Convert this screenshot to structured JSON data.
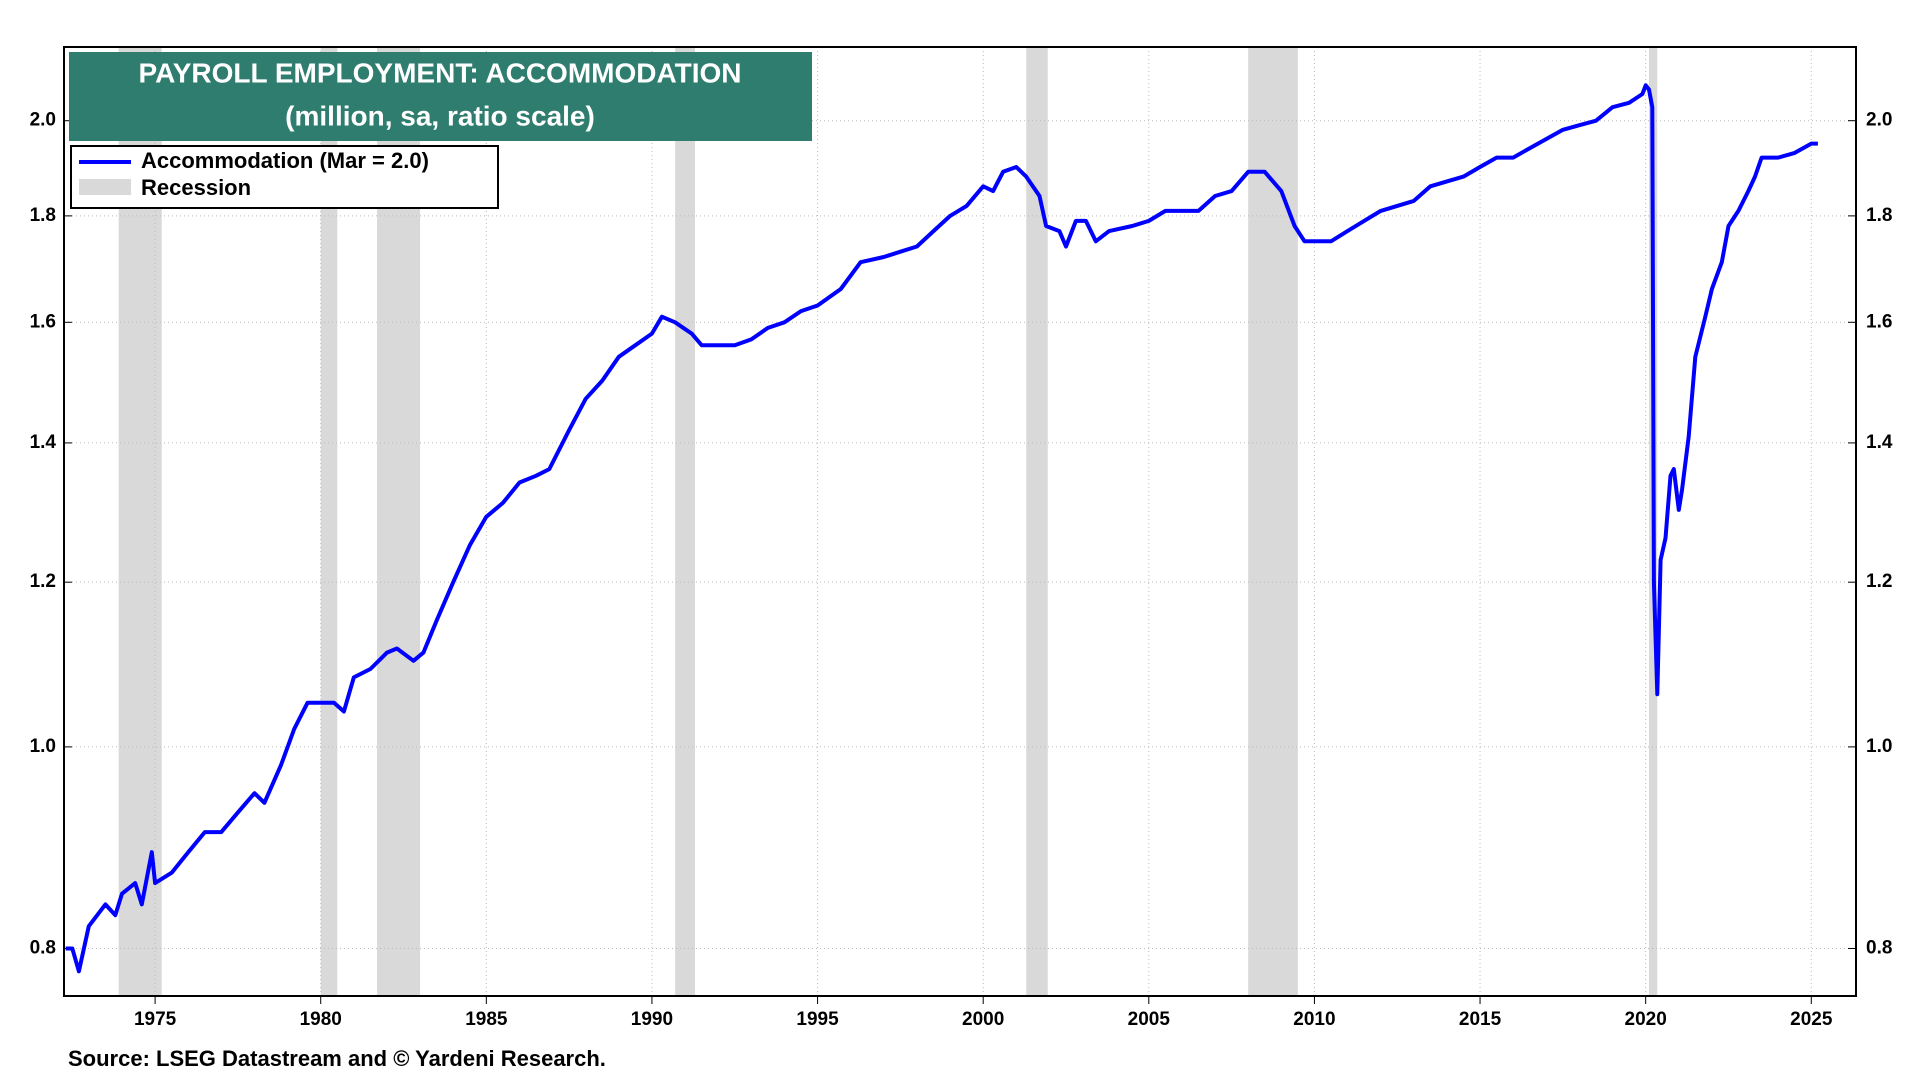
{
  "chart_data": {
    "type": "line",
    "title": "PAYROLL EMPLOYMENT:  ACCOMMODATION",
    "subtitle": "(million, sa, ratio scale)",
    "source": "Source: LSEG Datastream and © Yardeni Research.",
    "log_scale": true,
    "grid": true,
    "legend": "upper left",
    "recession_label": "Recession",
    "recession_color": "#d9d9d9",
    "recessions": [
      [
        1973.9,
        1975.2
      ],
      [
        1980.0,
        1980.5
      ],
      [
        1981.7,
        1983.0
      ],
      [
        1990.7,
        1991.3
      ],
      [
        2001.3,
        2001.95
      ],
      [
        2008.0,
        2009.5
      ],
      [
        2020.1,
        2020.35
      ]
    ],
    "xlim": [
      1972.25,
      2026.35
    ],
    "xticks": [
      1975,
      1980,
      1985,
      1990,
      1995,
      2000,
      2005,
      2010,
      2015,
      2020,
      2025
    ],
    "ylim": [
      0.759,
      2.17
    ],
    "yticks": [
      0.8,
      {
        "value": 1.0,
        "label": "1.0"
      },
      1.2,
      1.4,
      1.6,
      1.8,
      {
        "value": 2.0,
        "label": "2.0"
      }
    ],
    "x": [
      1972.3,
      1972.5,
      1972.7,
      1973.0,
      1973.5,
      1973.8,
      1974.0,
      1974.4,
      1974.6,
      1974.9,
      1975.0,
      1975.5,
      1976.0,
      1976.5,
      1977.0,
      1977.5,
      1978.0,
      1978.3,
      1978.8,
      1979.2,
      1979.6,
      1980.0,
      1980.4,
      1980.7,
      1981.0,
      1981.5,
      1982.0,
      1982.3,
      1982.8,
      1983.1,
      1983.5,
      1984.0,
      1984.5,
      1985.0,
      1985.5,
      1986.0,
      1986.5,
      1986.9,
      1987.5,
      1988.0,
      1988.5,
      1989.0,
      1989.5,
      1990.0,
      1990.3,
      1990.7,
      1991.2,
      1991.5,
      1992.0,
      1992.5,
      1993.0,
      1993.5,
      1994.0,
      1994.5,
      1995.0,
      1995.7,
      1996.3,
      1997.0,
      1997.5,
      1998.0,
      1998.5,
      1999.0,
      1999.5,
      2000.0,
      2000.3,
      2000.6,
      2001.0,
      2001.3,
      2001.7,
      2001.9,
      2002.3,
      2002.5,
      2002.8,
      2003.1,
      2003.4,
      2003.8,
      2004.5,
      2005.0,
      2005.5,
      2006.0,
      2006.5,
      2007.0,
      2007.5,
      2008.0,
      2008.5,
      2009.0,
      2009.4,
      2009.7,
      2010.0,
      2010.5,
      2011.0,
      2011.5,
      2012.0,
      2012.5,
      2013.0,
      2013.5,
      2014.0,
      2014.5,
      2015.0,
      2015.5,
      2016.0,
      2016.5,
      2017.0,
      2017.5,
      2018.0,
      2018.5,
      2019.0,
      2019.5,
      2019.9,
      2020.0,
      2020.1,
      2020.2,
      2020.25,
      2020.35,
      2020.45,
      2020.6,
      2020.75,
      2020.85,
      2021.0,
      2021.1,
      2021.3,
      2021.5,
      2021.8,
      2022.0,
      2022.3,
      2022.5,
      2022.8,
      2023.1,
      2023.3,
      2023.5,
      2024.0,
      2024.5,
      2025.0,
      2025.2
    ],
    "series": [
      {
        "name": "Accommodation (Mar = 2.0)",
        "color": "#0000ff",
        "values": [
          0.8,
          0.8,
          0.78,
          0.82,
          0.84,
          0.83,
          0.85,
          0.86,
          0.84,
          0.89,
          0.86,
          0.87,
          0.89,
          0.91,
          0.91,
          0.93,
          0.95,
          0.94,
          0.98,
          1.02,
          1.05,
          1.05,
          1.05,
          1.04,
          1.08,
          1.09,
          1.11,
          1.115,
          1.1,
          1.11,
          1.15,
          1.2,
          1.25,
          1.29,
          1.31,
          1.34,
          1.35,
          1.36,
          1.42,
          1.47,
          1.5,
          1.54,
          1.56,
          1.58,
          1.61,
          1.6,
          1.58,
          1.56,
          1.56,
          1.56,
          1.57,
          1.59,
          1.6,
          1.62,
          1.63,
          1.66,
          1.71,
          1.72,
          1.73,
          1.74,
          1.77,
          1.8,
          1.82,
          1.86,
          1.85,
          1.89,
          1.9,
          1.88,
          1.84,
          1.78,
          1.77,
          1.74,
          1.79,
          1.79,
          1.75,
          1.77,
          1.78,
          1.79,
          1.81,
          1.81,
          1.81,
          1.84,
          1.85,
          1.89,
          1.89,
          1.85,
          1.78,
          1.75,
          1.75,
          1.75,
          1.77,
          1.79,
          1.81,
          1.82,
          1.83,
          1.86,
          1.87,
          1.88,
          1.9,
          1.92,
          1.92,
          1.94,
          1.96,
          1.98,
          1.99,
          2.0,
          2.03,
          2.04,
          2.06,
          2.08,
          2.07,
          2.03,
          1.2,
          1.06,
          1.23,
          1.26,
          1.35,
          1.36,
          1.3,
          1.33,
          1.41,
          1.54,
          1.61,
          1.66,
          1.71,
          1.78,
          1.81,
          1.85,
          1.88,
          1.92,
          1.92,
          1.93,
          1.95,
          1.95
        ]
      }
    ]
  }
}
